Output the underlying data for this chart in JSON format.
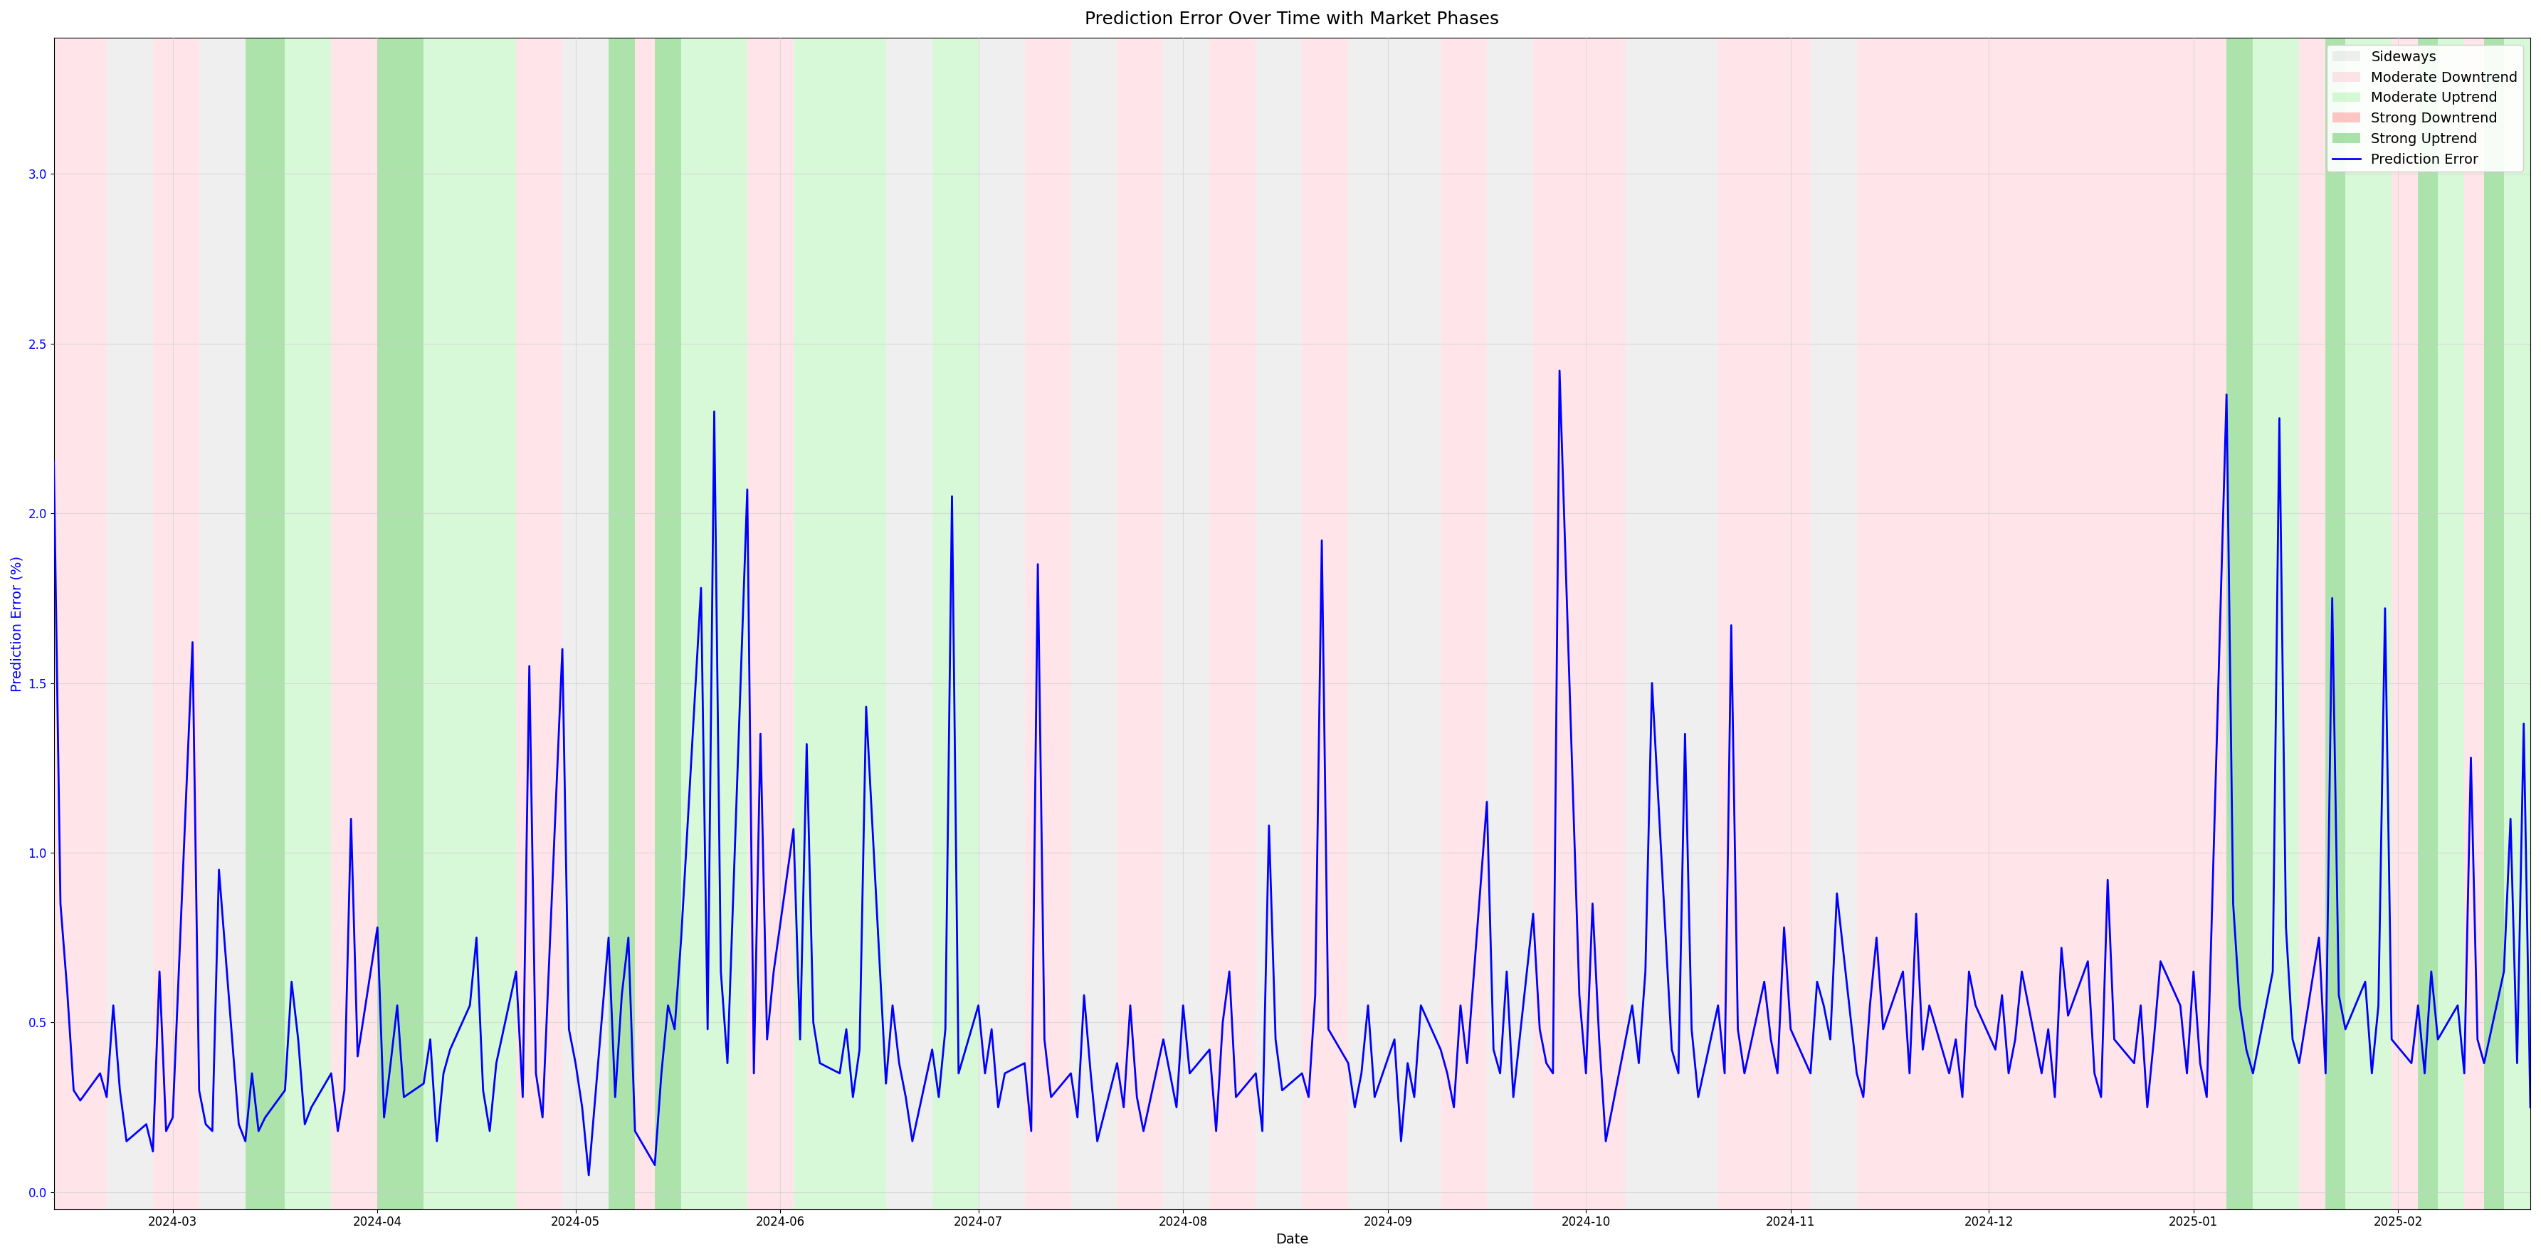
{
  "title": "Prediction Error Over Time with Market Phases",
  "xlabel": "Date",
  "ylabel": "Prediction Error (%)",
  "ylabel_color": "blue",
  "title_fontsize": 18,
  "label_fontsize": 14,
  "tick_fontsize": 12,
  "line_color": "blue",
  "line_width": 2.0,
  "ylim": [
    -0.05,
    3.4
  ],
  "background_color": "#ffffff",
  "phase_colors": {
    "Sideways": "#d3d3d3",
    "Moderate Downtrend": "#ffb6c1",
    "Moderate Uptrend": "#90ee90",
    "Strong Downtrend": "#ff9999",
    "Strong Uptrend": "#66cc66"
  },
  "phase_alphas": {
    "Sideways": 0.35,
    "Moderate Downtrend": 0.35,
    "Moderate Uptrend": 0.35,
    "Strong Downtrend": 0.55,
    "Strong Uptrend": 0.55
  },
  "grid_color": "#cccccc",
  "grid_alpha": 0.6,
  "phases": [
    [
      "2024-02-12",
      "2024-02-20",
      "Moderate Downtrend"
    ],
    [
      "2024-02-20",
      "2024-02-27",
      "Sideways"
    ],
    [
      "2024-02-27",
      "2024-03-05",
      "Moderate Downtrend"
    ],
    [
      "2024-03-05",
      "2024-03-12",
      "Sideways"
    ],
    [
      "2024-03-12",
      "2024-03-18",
      "Strong Uptrend"
    ],
    [
      "2024-03-18",
      "2024-03-25",
      "Moderate Uptrend"
    ],
    [
      "2024-03-25",
      "2024-04-01",
      "Moderate Downtrend"
    ],
    [
      "2024-04-01",
      "2024-04-08",
      "Strong Uptrend"
    ],
    [
      "2024-04-08",
      "2024-04-22",
      "Moderate Uptrend"
    ],
    [
      "2024-04-22",
      "2024-04-29",
      "Moderate Downtrend"
    ],
    [
      "2024-04-29",
      "2024-05-06",
      "Sideways"
    ],
    [
      "2024-05-06",
      "2024-05-10",
      "Strong Uptrend"
    ],
    [
      "2024-05-10",
      "2024-05-13",
      "Moderate Downtrend"
    ],
    [
      "2024-05-13",
      "2024-05-17",
      "Strong Uptrend"
    ],
    [
      "2024-05-17",
      "2024-05-27",
      "Moderate Uptrend"
    ],
    [
      "2024-05-27",
      "2024-06-03",
      "Moderate Downtrend"
    ],
    [
      "2024-06-03",
      "2024-06-17",
      "Moderate Uptrend"
    ],
    [
      "2024-06-17",
      "2024-06-24",
      "Sideways"
    ],
    [
      "2024-06-24",
      "2024-07-01",
      "Moderate Uptrend"
    ],
    [
      "2024-07-01",
      "2024-07-08",
      "Sideways"
    ],
    [
      "2024-07-08",
      "2024-07-15",
      "Moderate Downtrend"
    ],
    [
      "2024-07-15",
      "2024-07-22",
      "Sideways"
    ],
    [
      "2024-07-22",
      "2024-07-29",
      "Moderate Downtrend"
    ],
    [
      "2024-07-29",
      "2024-08-05",
      "Sideways"
    ],
    [
      "2024-08-05",
      "2024-08-12",
      "Moderate Downtrend"
    ],
    [
      "2024-08-12",
      "2024-08-19",
      "Sideways"
    ],
    [
      "2024-08-19",
      "2024-08-26",
      "Moderate Downtrend"
    ],
    [
      "2024-08-26",
      "2024-09-09",
      "Sideways"
    ],
    [
      "2024-09-09",
      "2024-09-16",
      "Moderate Downtrend"
    ],
    [
      "2024-09-16",
      "2024-09-23",
      "Sideways"
    ],
    [
      "2024-09-23",
      "2024-10-07",
      "Moderate Downtrend"
    ],
    [
      "2024-10-07",
      "2024-10-21",
      "Sideways"
    ],
    [
      "2024-10-21",
      "2024-11-04",
      "Moderate Downtrend"
    ],
    [
      "2024-11-04",
      "2024-11-11",
      "Sideways"
    ],
    [
      "2024-11-11",
      "2025-01-06",
      "Moderate Downtrend"
    ],
    [
      "2025-01-06",
      "2025-01-10",
      "Strong Uptrend"
    ],
    [
      "2025-01-10",
      "2025-01-17",
      "Moderate Uptrend"
    ],
    [
      "2025-01-17",
      "2025-01-21",
      "Moderate Downtrend"
    ],
    [
      "2025-01-21",
      "2025-01-24",
      "Strong Uptrend"
    ],
    [
      "2025-01-24",
      "2025-01-31",
      "Moderate Uptrend"
    ],
    [
      "2025-01-31",
      "2025-02-04",
      "Moderate Downtrend"
    ],
    [
      "2025-02-04",
      "2025-02-07",
      "Strong Uptrend"
    ],
    [
      "2025-02-07",
      "2025-02-11",
      "Moderate Uptrend"
    ],
    [
      "2025-02-11",
      "2025-02-14",
      "Moderate Downtrend"
    ],
    [
      "2025-02-14",
      "2025-02-17",
      "Strong Uptrend"
    ],
    [
      "2025-02-17",
      "2025-02-21",
      "Moderate Uptrend"
    ]
  ],
  "error_data": {
    "dates": [
      "2024-02-12",
      "2024-02-13",
      "2024-02-14",
      "2024-02-15",
      "2024-02-16",
      "2024-02-19",
      "2024-02-20",
      "2024-02-21",
      "2024-02-22",
      "2024-02-23",
      "2024-02-26",
      "2024-02-27",
      "2024-02-28",
      "2024-02-29",
      "2024-03-01",
      "2024-03-04",
      "2024-03-05",
      "2024-03-06",
      "2024-03-07",
      "2024-03-08",
      "2024-03-11",
      "2024-03-12",
      "2024-03-13",
      "2024-03-14",
      "2024-03-15",
      "2024-03-18",
      "2024-03-19",
      "2024-03-20",
      "2024-03-21",
      "2024-03-22",
      "2024-03-25",
      "2024-03-26",
      "2024-03-27",
      "2024-03-28",
      "2024-03-29",
      "2024-04-01",
      "2024-04-02",
      "2024-04-03",
      "2024-04-04",
      "2024-04-05",
      "2024-04-08",
      "2024-04-09",
      "2024-04-10",
      "2024-04-11",
      "2024-04-12",
      "2024-04-15",
      "2024-04-16",
      "2024-04-17",
      "2024-04-18",
      "2024-04-19",
      "2024-04-22",
      "2024-04-23",
      "2024-04-24",
      "2024-04-25",
      "2024-04-26",
      "2024-04-29",
      "2024-04-30",
      "2024-05-01",
      "2024-05-02",
      "2024-05-03",
      "2024-05-06",
      "2024-05-07",
      "2024-05-08",
      "2024-05-09",
      "2024-05-10",
      "2024-05-13",
      "2024-05-14",
      "2024-05-15",
      "2024-05-16",
      "2024-05-17",
      "2024-05-20",
      "2024-05-21",
      "2024-05-22",
      "2024-05-23",
      "2024-05-24",
      "2024-05-27",
      "2024-05-28",
      "2024-05-29",
      "2024-05-30",
      "2024-05-31",
      "2024-06-03",
      "2024-06-04",
      "2024-06-05",
      "2024-06-06",
      "2024-06-07",
      "2024-06-10",
      "2024-06-11",
      "2024-06-12",
      "2024-06-13",
      "2024-06-14",
      "2024-06-17",
      "2024-06-18",
      "2024-06-19",
      "2024-06-20",
      "2024-06-21",
      "2024-06-24",
      "2024-06-25",
      "2024-06-26",
      "2024-06-27",
      "2024-06-28",
      "2024-07-01",
      "2024-07-02",
      "2024-07-03",
      "2024-07-04",
      "2024-07-05",
      "2024-07-08",
      "2024-07-09",
      "2024-07-10",
      "2024-07-11",
      "2024-07-12",
      "2024-07-15",
      "2024-07-16",
      "2024-07-17",
      "2024-07-18",
      "2024-07-19",
      "2024-07-22",
      "2024-07-23",
      "2024-07-24",
      "2024-07-25",
      "2024-07-26",
      "2024-07-29",
      "2024-07-30",
      "2024-07-31",
      "2024-08-01",
      "2024-08-02",
      "2024-08-05",
      "2024-08-06",
      "2024-08-07",
      "2024-08-08",
      "2024-08-09",
      "2024-08-12",
      "2024-08-13",
      "2024-08-14",
      "2024-08-15",
      "2024-08-16",
      "2024-08-19",
      "2024-08-20",
      "2024-08-21",
      "2024-08-22",
      "2024-08-23",
      "2024-08-26",
      "2024-08-27",
      "2024-08-28",
      "2024-08-29",
      "2024-08-30",
      "2024-09-02",
      "2024-09-03",
      "2024-09-04",
      "2024-09-05",
      "2024-09-06",
      "2024-09-09",
      "2024-09-10",
      "2024-09-11",
      "2024-09-12",
      "2024-09-13",
      "2024-09-16",
      "2024-09-17",
      "2024-09-18",
      "2024-09-19",
      "2024-09-20",
      "2024-09-23",
      "2024-09-24",
      "2024-09-25",
      "2024-09-26",
      "2024-09-27",
      "2024-09-30",
      "2024-10-01",
      "2024-10-02",
      "2024-10-03",
      "2024-10-04",
      "2024-10-07",
      "2024-10-08",
      "2024-10-09",
      "2024-10-10",
      "2024-10-11",
      "2024-10-14",
      "2024-10-15",
      "2024-10-16",
      "2024-10-17",
      "2024-10-18",
      "2024-10-21",
      "2024-10-22",
      "2024-10-23",
      "2024-10-24",
      "2024-10-25",
      "2024-10-28",
      "2024-10-29",
      "2024-10-30",
      "2024-10-31",
      "2024-11-01",
      "2024-11-04",
      "2024-11-05",
      "2024-11-06",
      "2024-11-07",
      "2024-11-08",
      "2024-11-11",
      "2024-11-12",
      "2024-11-13",
      "2024-11-14",
      "2024-11-15",
      "2024-11-18",
      "2024-11-19",
      "2024-11-20",
      "2024-11-21",
      "2024-11-22",
      "2024-11-25",
      "2024-11-26",
      "2024-11-27",
      "2024-11-28",
      "2024-11-29",
      "2024-12-02",
      "2024-12-03",
      "2024-12-04",
      "2024-12-05",
      "2024-12-06",
      "2024-12-09",
      "2024-12-10",
      "2024-12-11",
      "2024-12-12",
      "2024-12-13",
      "2024-12-16",
      "2024-12-17",
      "2024-12-18",
      "2024-12-19",
      "2024-12-20",
      "2024-12-23",
      "2024-12-24",
      "2024-12-25",
      "2024-12-26",
      "2024-12-27",
      "2024-12-30",
      "2024-12-31",
      "2025-01-01",
      "2025-01-02",
      "2025-01-03",
      "2025-01-06",
      "2025-01-07",
      "2025-01-08",
      "2025-01-09",
      "2025-01-10",
      "2025-01-13",
      "2025-01-14",
      "2025-01-15",
      "2025-01-16",
      "2025-01-17",
      "2025-01-20",
      "2025-01-21",
      "2025-01-22",
      "2025-01-23",
      "2025-01-24",
      "2025-01-27",
      "2025-01-28",
      "2025-01-29",
      "2025-01-30",
      "2025-01-31",
      "2025-02-03",
      "2025-02-04",
      "2025-02-05",
      "2025-02-06",
      "2025-02-07",
      "2025-02-10",
      "2025-02-11",
      "2025-02-12",
      "2025-02-13",
      "2025-02-14",
      "2025-02-17",
      "2025-02-18",
      "2025-02-19",
      "2025-02-20",
      "2025-02-21"
    ],
    "values": [
      2.15,
      0.85,
      0.6,
      0.3,
      0.27,
      0.35,
      0.28,
      0.55,
      0.3,
      0.15,
      0.2,
      0.12,
      0.65,
      0.18,
      0.22,
      1.62,
      0.3,
      0.2,
      0.18,
      0.95,
      0.2,
      0.15,
      0.35,
      0.18,
      0.22,
      0.3,
      0.62,
      0.45,
      0.2,
      0.25,
      0.35,
      0.18,
      0.3,
      1.1,
      0.4,
      0.78,
      0.22,
      0.38,
      0.55,
      0.28,
      0.32,
      0.45,
      0.15,
      0.35,
      0.42,
      0.55,
      0.75,
      0.3,
      0.18,
      0.38,
      0.65,
      0.28,
      1.55,
      0.35,
      0.22,
      1.6,
      0.48,
      0.38,
      0.25,
      0.05,
      0.75,
      0.28,
      0.58,
      0.75,
      0.18,
      0.08,
      0.35,
      0.55,
      0.48,
      0.75,
      1.78,
      0.48,
      2.3,
      0.65,
      0.38,
      2.07,
      0.35,
      1.35,
      0.45,
      0.65,
      1.07,
      0.45,
      1.32,
      0.5,
      0.38,
      0.35,
      0.48,
      0.28,
      0.42,
      1.43,
      0.32,
      0.55,
      0.38,
      0.28,
      0.15,
      0.42,
      0.28,
      0.48,
      2.05,
      0.35,
      0.55,
      0.35,
      0.48,
      0.25,
      0.35,
      0.38,
      0.18,
      1.85,
      0.45,
      0.28,
      0.35,
      0.22,
      0.58,
      0.35,
      0.15,
      0.38,
      0.25,
      0.55,
      0.28,
      0.18,
      0.45,
      0.35,
      0.25,
      0.55,
      0.35,
      0.42,
      0.18,
      0.5,
      0.65,
      0.28,
      0.35,
      0.18,
      1.08,
      0.45,
      0.3,
      0.35,
      0.28,
      0.58,
      1.92,
      0.48,
      0.38,
      0.25,
      0.35,
      0.55,
      0.28,
      0.45,
      0.15,
      0.38,
      0.28,
      0.55,
      0.42,
      0.35,
      0.25,
      0.55,
      0.38,
      1.15,
      0.42,
      0.35,
      0.65,
      0.28,
      0.82,
      0.48,
      0.38,
      0.35,
      2.42,
      0.58,
      0.35,
      0.85,
      0.45,
      0.15,
      0.45,
      0.55,
      0.38,
      0.65,
      1.5,
      0.42,
      0.35,
      1.35,
      0.48,
      0.28,
      0.55,
      0.35,
      1.67,
      0.48,
      0.35,
      0.62,
      0.45,
      0.35,
      0.78,
      0.48,
      0.35,
      0.62,
      0.55,
      0.45,
      0.88,
      0.35,
      0.28,
      0.55,
      0.75,
      0.48,
      0.65,
      0.35,
      0.82,
      0.42,
      0.55,
      0.35,
      0.45,
      0.28,
      0.65,
      0.55,
      0.42,
      0.58,
      0.35,
      0.45,
      0.65,
      0.35,
      0.48,
      0.28,
      0.72,
      0.52,
      0.68,
      0.35,
      0.28,
      0.92,
      0.45,
      0.38,
      0.55,
      0.25,
      0.45,
      0.68,
      0.55,
      0.35,
      0.65,
      0.38,
      0.28,
      2.35,
      0.85,
      0.55,
      0.42,
      0.35,
      0.65,
      2.28,
      0.78,
      0.45,
      0.38,
      0.75,
      0.35,
      1.75,
      0.58,
      0.48,
      0.62,
      0.35,
      0.55,
      1.72,
      0.45,
      0.38,
      0.55,
      0.35,
      0.65,
      0.45,
      0.55,
      0.35,
      1.28,
      0.45,
      0.38,
      0.65,
      1.1,
      0.38,
      1.38,
      0.25
    ]
  }
}
